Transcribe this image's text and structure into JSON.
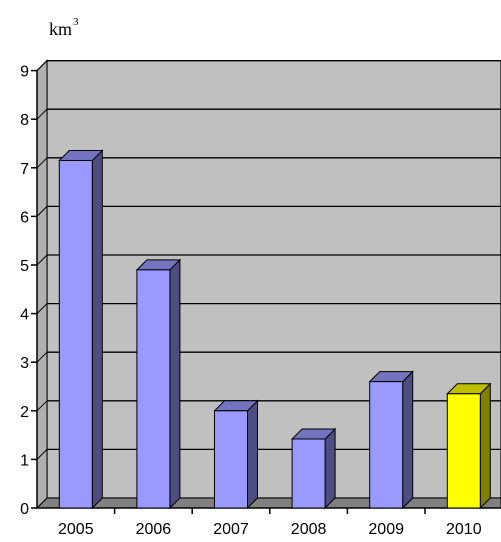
{
  "chart_data": {
    "type": "bar",
    "ylabel": "km",
    "ylabel_sup": "3",
    "categories": [
      "2005",
      "2006",
      "2007",
      "2008",
      "2009",
      "2010"
    ],
    "values": [
      7.15,
      4.9,
      2.0,
      1.42,
      2.6,
      2.35
    ],
    "ylim": [
      0,
      9
    ],
    "yticks": [
      0,
      1,
      2,
      3,
      4,
      5,
      6,
      7,
      8,
      9
    ],
    "grid": true,
    "colors": {
      "bar": "#9999ff",
      "highlight_bar": "#ffff00",
      "plot_bg": "#c0c0c0"
    },
    "highlight_category": "2010"
  }
}
